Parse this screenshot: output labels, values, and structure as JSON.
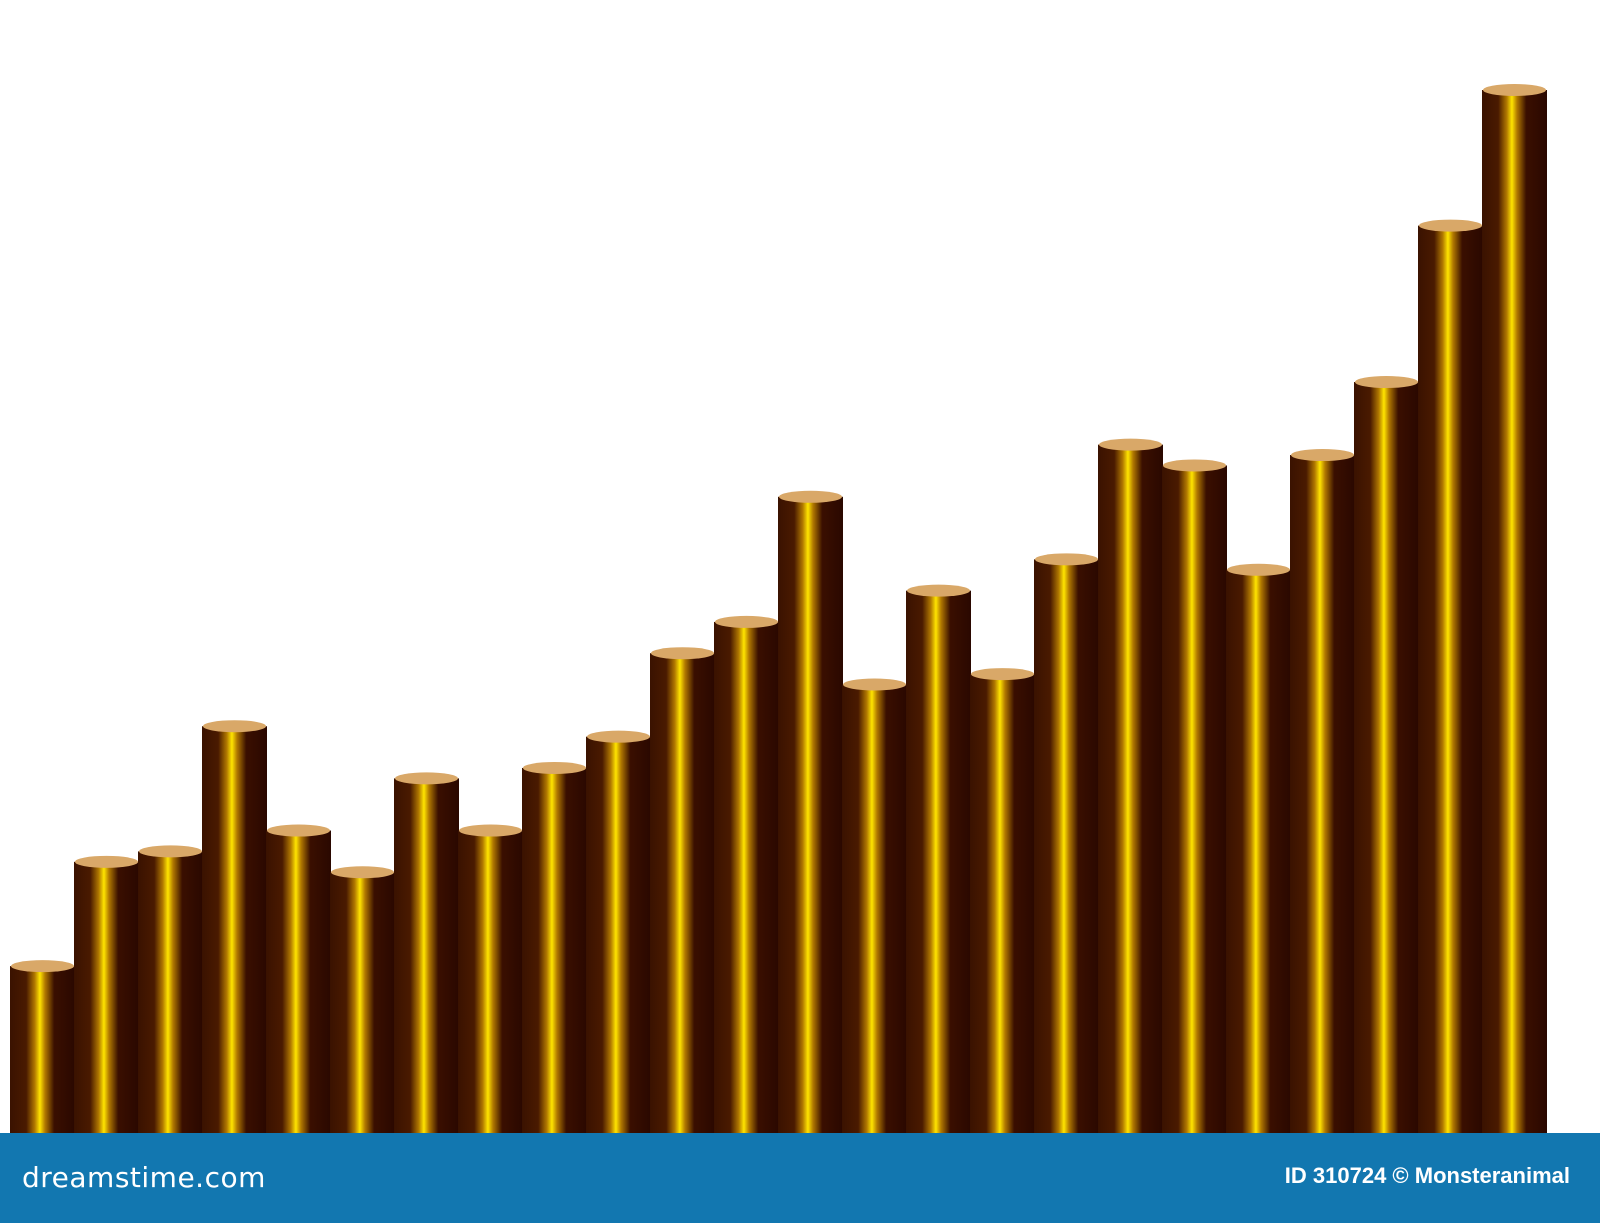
{
  "chart_data": {
    "type": "bar",
    "style": "3d-cylinders",
    "title": "",
    "xlabel": "",
    "ylabel": "",
    "values": [
      16,
      26,
      27,
      39,
      29,
      25,
      34,
      29,
      35,
      38,
      46,
      49,
      61,
      43,
      52,
      44,
      55,
      66,
      64,
      54,
      65,
      72,
      87,
      100
    ],
    "ylim": [
      0,
      100
    ],
    "grid": false,
    "colors": {
      "bar": "#2e0c00",
      "highlight": "#ffe000",
      "top": "#d9a868"
    }
  },
  "footer": {
    "logo": "dreamstime.com",
    "credit": "ID 310724 © Monsteranimal",
    "color": "#1277b0"
  }
}
